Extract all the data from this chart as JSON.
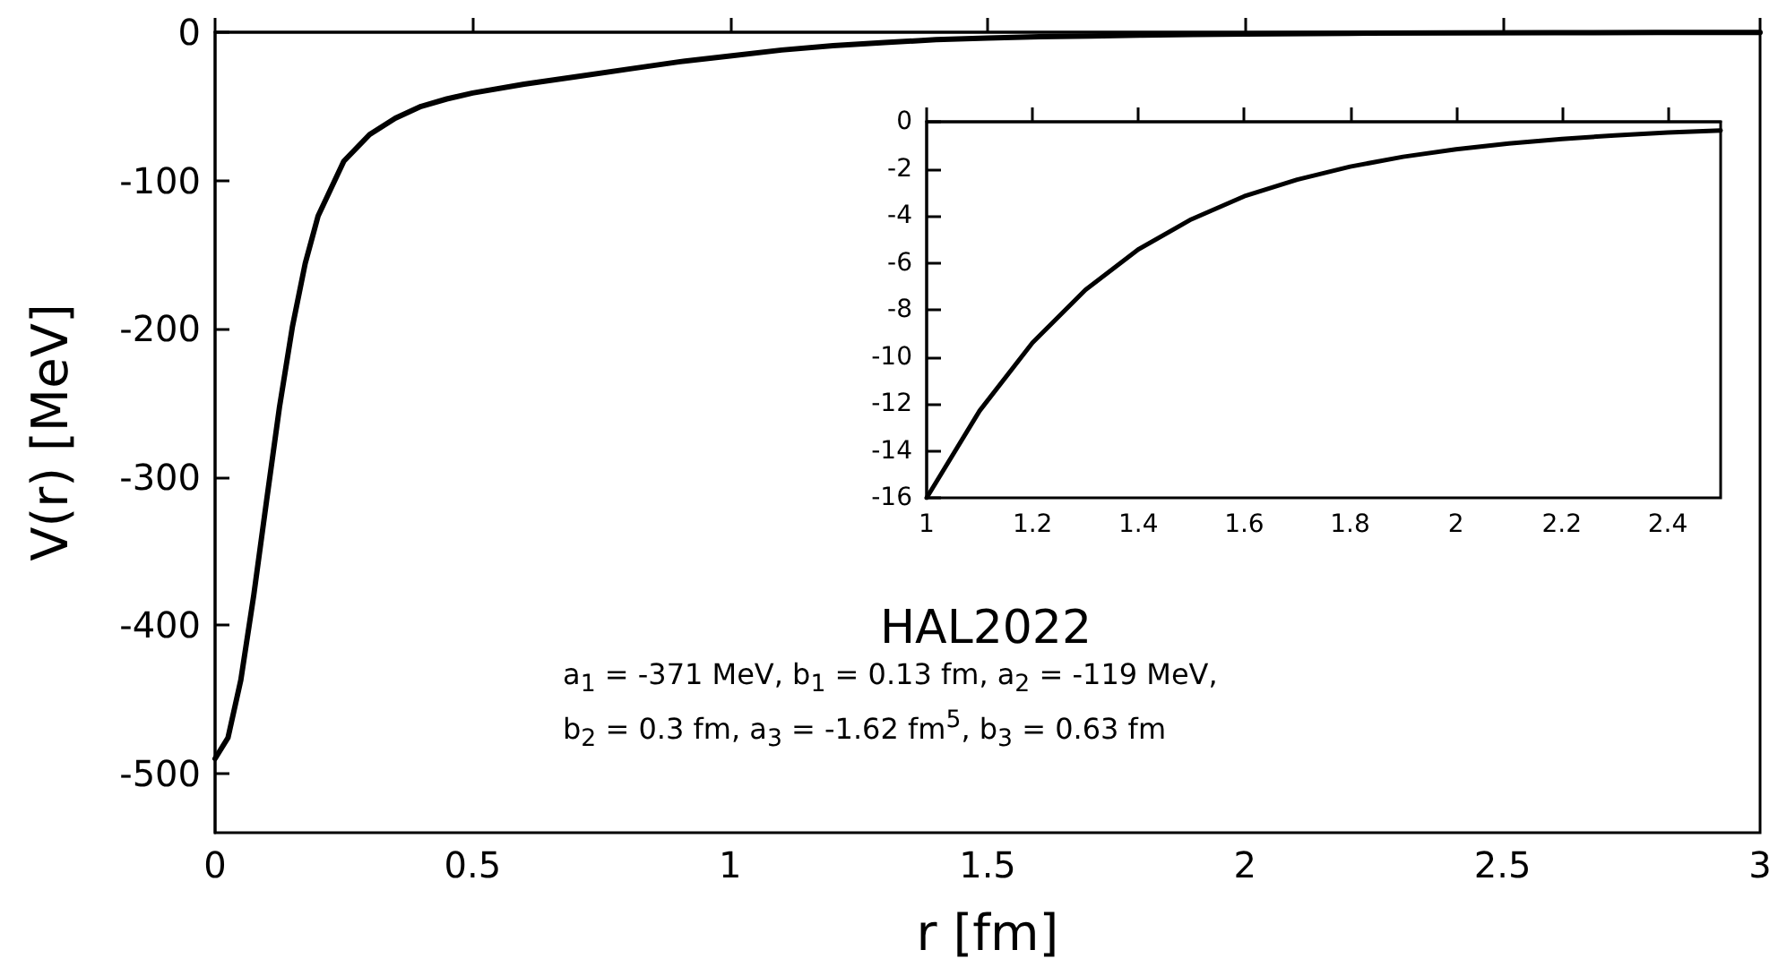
{
  "chart_data": [
    {
      "type": "line",
      "xlabel": "r [fm]",
      "ylabel": "V(r) [MeV]",
      "xlim": [
        0,
        3
      ],
      "xticks": [
        0,
        0.5,
        1,
        1.5,
        2,
        2.5,
        3
      ],
      "ylim": [
        -540,
        0
      ],
      "yticks": [
        -500,
        -400,
        -300,
        -200,
        -100,
        0
      ],
      "annotations": [
        "HAL2022",
        "a$_{1}$ = -371 MeV,  b$_{1}$ = 0.13 fm,  a$_{2}$ = -119 MeV,",
        "b$_{2}$ = 0.3 fm,  a$_{3}$ = -1.62 fm$^{5}$,  b$_{3}$ = 0.63 fm"
      ],
      "series": [
        {
          "color": "#000000",
          "x": [
            0,
            0.025,
            0.05,
            0.075,
            0.1,
            0.125,
            0.15,
            0.175,
            0.2,
            0.25,
            0.3,
            0.35,
            0.4,
            0.45,
            0.5,
            0.6,
            0.7,
            0.8,
            0.9,
            1.0,
            1.1,
            1.2,
            1.3,
            1.4,
            1.5,
            1.6,
            1.7,
            1.8,
            1.9,
            2.0,
            2.2,
            2.4,
            2.6,
            2.8,
            3.0
          ],
          "values": [
            -490,
            -476,
            -437,
            -380,
            -316,
            -253,
            -199,
            -156,
            -124,
            -87,
            -69,
            -58,
            -50,
            -45,
            -41,
            -35,
            -30,
            -25,
            -20,
            -16,
            -12,
            -9,
            -7,
            -5,
            -4,
            -3,
            -2.5,
            -2,
            -1.5,
            -1.2,
            -0.7,
            -0.5,
            -0.3,
            -0.2,
            -0.1
          ]
        }
      ]
    },
    {
      "type": "line",
      "xlim": [
        1,
        2.5
      ],
      "xticks": [
        1,
        1.2,
        1.4,
        1.6,
        1.8,
        2,
        2.2,
        2.4
      ],
      "ylim": [
        -16,
        0
      ],
      "yticks": [
        -16,
        -14,
        -12,
        -10,
        -8,
        -6,
        -4,
        -2,
        0
      ],
      "series": [
        {
          "color": "#000000",
          "x": [
            1.0,
            1.1,
            1.2,
            1.3,
            1.4,
            1.5,
            1.6,
            1.7,
            1.8,
            1.9,
            2.0,
            2.1,
            2.2,
            2.3,
            2.4,
            2.5
          ],
          "values": [
            -16.0,
            -12.3,
            -9.4,
            -7.15,
            -5.43,
            -4.15,
            -3.17,
            -2.46,
            -1.91,
            -1.49,
            -1.17,
            -0.92,
            -0.73,
            -0.58,
            -0.46,
            -0.37
          ]
        }
      ]
    }
  ]
}
